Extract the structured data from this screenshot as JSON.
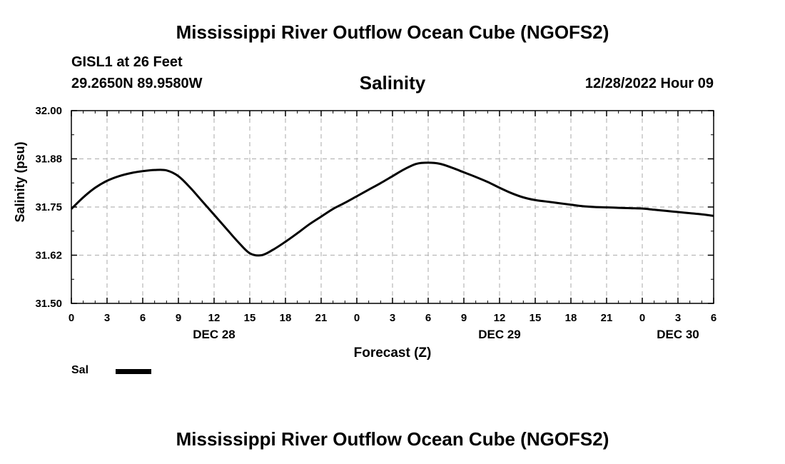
{
  "header": {
    "title": "Mississippi River Outflow Ocean Cube (NGOFS2)",
    "station": "GISL1 at 26 Feet",
    "coordinates": "29.2650N  89.9580W",
    "parameter": "Salinity",
    "datetime": "12/28/2022 Hour 09"
  },
  "footer": {
    "title": "Mississippi River Outflow Ocean Cube (NGOFS2)"
  },
  "legend": {
    "label": "Sal",
    "color": "#000000"
  },
  "chart_data": {
    "type": "line",
    "title": "Salinity",
    "xlabel": "Forecast (Z)",
    "ylabel": "Salinity (psu)",
    "ylim": [
      31.5,
      32.0
    ],
    "yticks": [
      "31.50",
      "31.62",
      "31.75",
      "31.88",
      "32.00"
    ],
    "xlim": [
      0,
      54
    ],
    "xtick_labels": [
      "0",
      "3",
      "6",
      "9",
      "12",
      "15",
      "18",
      "21",
      "0",
      "3",
      "6",
      "9",
      "12",
      "15",
      "18",
      "21",
      "0",
      "3",
      "6"
    ],
    "date_labels": [
      {
        "label": "DEC 28",
        "hour": 12
      },
      {
        "label": "DEC 29",
        "hour": 36
      },
      {
        "label": "DEC 30",
        "hour": 51
      }
    ],
    "grid": true,
    "series": [
      {
        "name": "Sal",
        "color": "#000000",
        "x": [
          0,
          1,
          2,
          3,
          4,
          5,
          6,
          7,
          8,
          9,
          10,
          11,
          12,
          13,
          14,
          15,
          16,
          17,
          18,
          19,
          20,
          21,
          22,
          23,
          24,
          25,
          26,
          27,
          28,
          29,
          30,
          31,
          32,
          33,
          34,
          35,
          36,
          37,
          38,
          39,
          40,
          41,
          42,
          43,
          44,
          45,
          46,
          47,
          48,
          49,
          50,
          51,
          52,
          53,
          54
        ],
        "y": [
          31.745,
          31.775,
          31.8,
          31.818,
          31.83,
          31.838,
          31.843,
          31.846,
          31.845,
          31.83,
          31.8,
          31.765,
          31.73,
          31.695,
          31.66,
          31.63,
          31.625,
          31.64,
          31.66,
          31.682,
          31.705,
          31.725,
          31.745,
          31.761,
          31.778,
          31.795,
          31.812,
          31.83,
          31.848,
          31.862,
          31.865,
          31.862,
          31.852,
          31.84,
          31.828,
          31.815,
          31.8,
          31.786,
          31.775,
          31.768,
          31.764,
          31.76,
          31.756,
          31.752,
          31.75,
          31.749,
          31.748,
          31.747,
          31.746,
          31.743,
          31.74,
          31.737,
          31.734,
          31.731,
          31.727
        ]
      }
    ]
  }
}
